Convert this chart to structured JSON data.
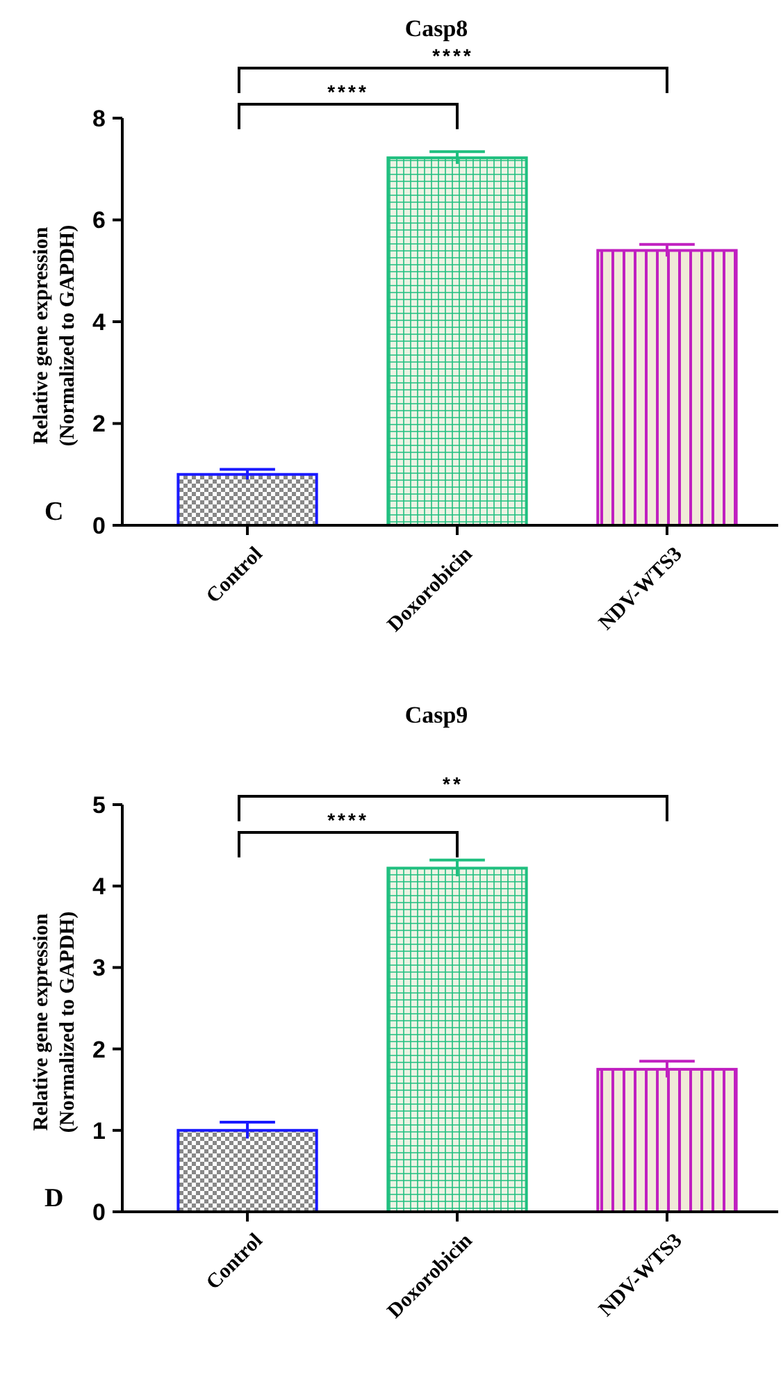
{
  "chart_data": [
    {
      "type": "bar",
      "title": "Casp8",
      "ylabel": "Relative gene expression\n(Normalized to GAPDH)",
      "categories": [
        "Control",
        "Doxorobicin",
        "NDV-WTS3"
      ],
      "values": [
        1.0,
        7.22,
        5.4
      ],
      "errors": [
        0.1,
        0.12,
        0.12
      ],
      "colors": [
        "#1a1aff",
        "#1fbf7f",
        "#c020c0"
      ],
      "ylim": [
        0,
        8
      ],
      "yticks": [
        0,
        2,
        4,
        6,
        8
      ],
      "annotations": [
        "C",
        "****",
        "****"
      ]
    },
    {
      "type": "bar",
      "title": "Casp9",
      "ylabel": "Relative gene expression\n(Normalized to GAPDH)",
      "categories": [
        "Control",
        "Doxorobicin",
        "NDV-WTS3"
      ],
      "values": [
        1.0,
        4.22,
        1.75
      ],
      "errors": [
        0.1,
        0.1,
        0.1
      ],
      "colors": [
        "#1a1aff",
        "#1fbf7f",
        "#c020c0"
      ],
      "ylim": [
        0,
        5
      ],
      "yticks": [
        0,
        1,
        2,
        3,
        4,
        5
      ],
      "annotations": [
        "D",
        "****",
        "**"
      ]
    }
  ]
}
